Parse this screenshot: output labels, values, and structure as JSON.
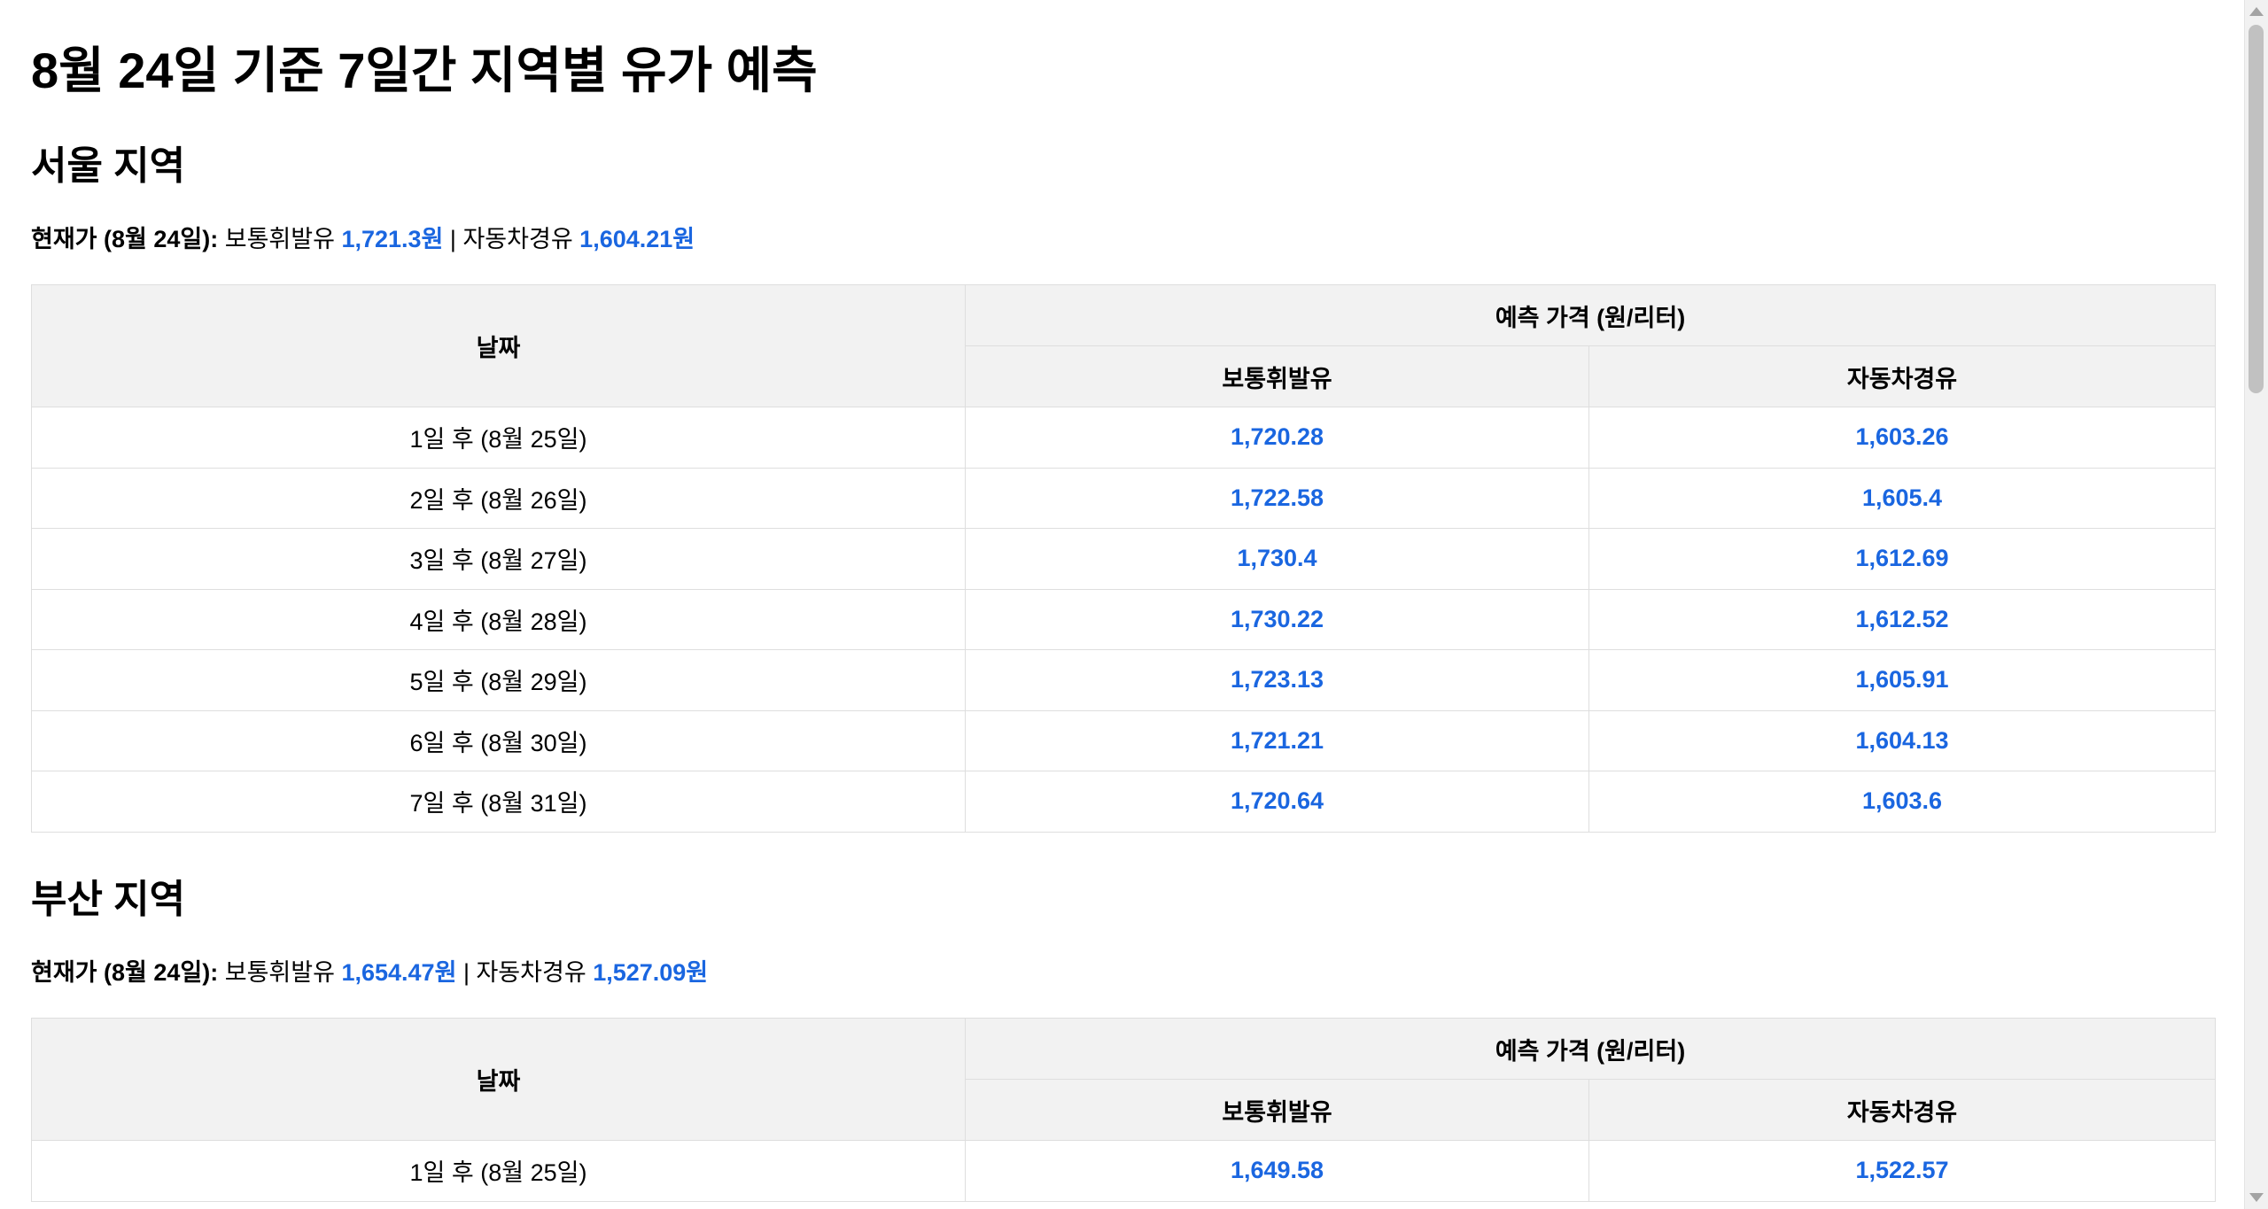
{
  "page": {
    "title": "8월 24일 기준 7일간 지역별 유가 예측"
  },
  "colors": {
    "price_blue": "#1a66e0",
    "header_bg": "#f2f2f2",
    "border": "#dedede"
  },
  "regions": [
    {
      "name": "서울 지역",
      "current_label": "현재가 (8월 24일):",
      "gasoline_label": "보통휘발유",
      "gasoline_value": "1,721.3원",
      "separator": "|",
      "diesel_label": "자동차경유",
      "diesel_value": "1,604.21원",
      "table": {
        "date_header": "날짜",
        "group_header": "예측 가격 (원/리터)",
        "gasoline_header": "보통휘발유",
        "diesel_header": "자동차경유",
        "rows": [
          {
            "date": "1일 후 (8월 25일)",
            "gasoline": "1,720.28",
            "diesel": "1,603.26"
          },
          {
            "date": "2일 후 (8월 26일)",
            "gasoline": "1,722.58",
            "diesel": "1,605.4"
          },
          {
            "date": "3일 후 (8월 27일)",
            "gasoline": "1,730.4",
            "diesel": "1,612.69"
          },
          {
            "date": "4일 후 (8월 28일)",
            "gasoline": "1,730.22",
            "diesel": "1,612.52"
          },
          {
            "date": "5일 후 (8월 29일)",
            "gasoline": "1,723.13",
            "diesel": "1,605.91"
          },
          {
            "date": "6일 후 (8월 30일)",
            "gasoline": "1,721.21",
            "diesel": "1,604.13"
          },
          {
            "date": "7일 후 (8월 31일)",
            "gasoline": "1,720.64",
            "diesel": "1,603.6"
          }
        ]
      }
    },
    {
      "name": "부산 지역",
      "current_label": "현재가 (8월 24일):",
      "gasoline_label": "보통휘발유",
      "gasoline_value": "1,654.47원",
      "separator": "|",
      "diesel_label": "자동차경유",
      "diesel_value": "1,527.09원",
      "table": {
        "date_header": "날짜",
        "group_header": "예측 가격 (원/리터)",
        "gasoline_header": "보통휘발유",
        "diesel_header": "자동차경유",
        "rows": [
          {
            "date": "1일 후 (8월 25일)",
            "gasoline": "1,649.58",
            "diesel": "1,522.57"
          }
        ]
      }
    }
  ]
}
